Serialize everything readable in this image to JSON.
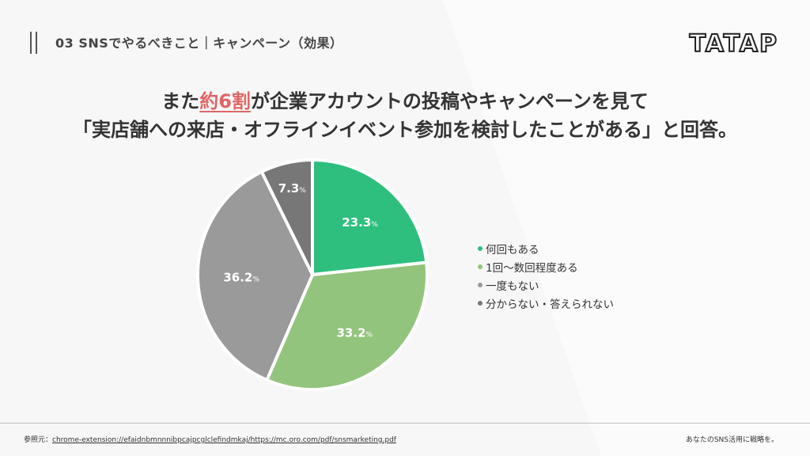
{
  "header": {
    "title": "03 SNSでやるべきこと｜キャンペーン（効果）",
    "logo": "TATAP"
  },
  "headline": {
    "line1_pre": "また",
    "line1_highlight": "約6割",
    "line1_post": "が企業アカウントの投稿やキャンペーンを見て",
    "line2": "「実店舗への来店・オフラインイベント参加を検討したことがある」と回答。"
  },
  "chart_data": {
    "type": "pie",
    "slices": [
      {
        "label": "何回もある",
        "value": 23.3,
        "color": "#2ebf7e",
        "display": "23.3"
      },
      {
        "label": "1回〜数回程度ある",
        "value": 33.2,
        "color": "#93c47d",
        "display": "33.2"
      },
      {
        "label": "一度もない",
        "value": 36.2,
        "color": "#9a9a9a",
        "display": "36.2"
      },
      {
        "label": "分からない・答えられない",
        "value": 7.3,
        "color": "#777777",
        "display": "7.3"
      }
    ],
    "unit": "%",
    "start_angle": "12 o'clock",
    "direction": "clockwise",
    "legend_position": "right"
  },
  "footer": {
    "ref_label": "参照元：",
    "ref_link": "chrome-extension://efaidnbmnnnibpcajpcglclefindmkaj/https://mc.oro.com/pdf/snsmarketing.pdf",
    "tagline": "あなたのSNS活用に戦略を。"
  }
}
